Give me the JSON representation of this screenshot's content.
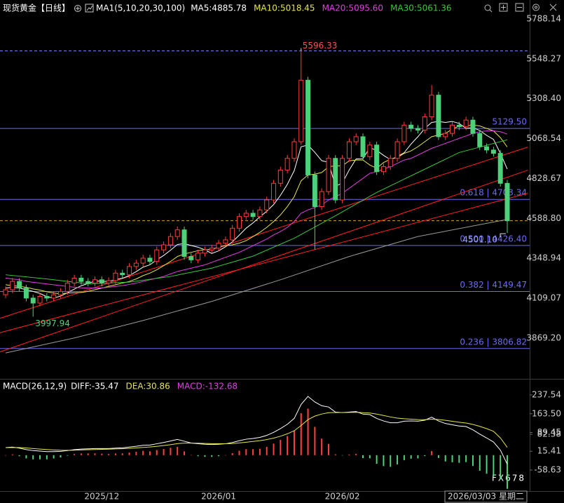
{
  "chart_data": [
    {
      "type": "candlestick",
      "title": "现货黄金【日线】",
      "indicator": "MA1(5,10,20,30,100)",
      "categories": [
        null,
        null,
        null,
        null,
        null,
        null,
        null,
        null,
        null,
        null,
        null,
        null,
        null,
        null,
        "2025/12",
        null,
        null,
        null,
        null,
        null,
        null,
        null,
        null,
        null,
        null,
        null,
        null,
        null,
        null,
        null,
        null,
        "2026/01",
        null,
        null,
        null,
        null,
        null,
        null,
        null,
        null,
        null,
        null,
        null,
        null,
        null,
        null,
        null,
        null,
        null,
        "2026/02",
        null,
        null,
        null,
        null,
        null,
        null,
        null,
        null,
        null,
        null,
        null,
        null,
        null,
        null,
        null,
        null,
        null,
        null,
        null,
        null,
        null,
        null,
        null,
        "2026/03/03 星期二"
      ],
      "open": [
        4130,
        4160,
        4210,
        4170,
        4110,
        4080,
        4120,
        4110,
        4130,
        4150,
        4200,
        4230,
        4210,
        4200,
        4220,
        4200,
        4215,
        4260,
        4250,
        4300,
        4320,
        4350,
        4330,
        4400,
        4430,
        4480,
        4520,
        4360,
        4340,
        4380,
        4400,
        4410,
        4440,
        4460,
        4530,
        4600,
        4620,
        4600,
        4640,
        4700,
        4800,
        4880,
        4950,
        5050,
        5420,
        4850,
        4660,
        4750,
        4950,
        4700,
        4950,
        5050,
        5080,
        4960,
        5030,
        4870,
        4900,
        4950,
        5050,
        5150,
        5130,
        5120,
        5200,
        5330,
        5080,
        5100,
        5150,
        5140,
        5180,
        5100,
        5020,
        5000,
        4980,
        4800
      ],
      "high": [
        4180,
        4230,
        4230,
        4190,
        4130,
        4140,
        4140,
        4150,
        4170,
        4220,
        4250,
        4250,
        4230,
        4240,
        4240,
        4235,
        4280,
        4280,
        4320,
        4340,
        4370,
        4370,
        4420,
        4450,
        4500,
        4540,
        4540,
        4380,
        4400,
        4420,
        4430,
        4460,
        4480,
        4550,
        4620,
        4640,
        4640,
        4660,
        4720,
        4820,
        4900,
        4970,
        5070,
        5596.33,
        5440,
        4870,
        4770,
        4970,
        4970,
        4970,
        5070,
        5100,
        5100,
        5050,
        5050,
        4920,
        4970,
        5070,
        5170,
        5170,
        5150,
        5220,
        5390,
        5350,
        5120,
        5170,
        5170,
        5200,
        5200,
        5120,
        5040,
        5020,
        5000,
        4820
      ],
      "low": [
        4110,
        4140,
        4150,
        4090,
        3997.94,
        4060,
        4090,
        4090,
        4110,
        4130,
        4180,
        4190,
        4180,
        4180,
        4180,
        4180,
        4195,
        4230,
        4230,
        4280,
        4300,
        4310,
        4310,
        4380,
        4410,
        4460,
        4340,
        4320,
        4320,
        4360,
        4380,
        4390,
        4420,
        4440,
        4510,
        4580,
        4580,
        4580,
        4620,
        4680,
        4780,
        4860,
        4930,
        5030,
        4830,
        4402,
        4640,
        4730,
        4680,
        4680,
        4930,
        5030,
        4940,
        4940,
        4850,
        4850,
        4880,
        4930,
        5030,
        5110,
        5100,
        5100,
        5180,
        5060,
        5060,
        5080,
        5120,
        5120,
        5080,
        5000,
        4980,
        4960,
        4780,
        4501.1
      ],
      "close": [
        4160,
        4210,
        4170,
        4110,
        4080,
        4120,
        4110,
        4130,
        4150,
        4200,
        4230,
        4210,
        4200,
        4220,
        4200,
        4215,
        4260,
        4250,
        4300,
        4320,
        4350,
        4330,
        4400,
        4430,
        4480,
        4520,
        4360,
        4340,
        4380,
        4400,
        4410,
        4440,
        4460,
        4530,
        4600,
        4620,
        4600,
        4640,
        4700,
        4800,
        4880,
        4950,
        5050,
        5420,
        4850,
        4660,
        4750,
        4950,
        4700,
        4950,
        5050,
        5080,
        4960,
        5030,
        4870,
        4900,
        4950,
        5050,
        5150,
        5130,
        5120,
        5200,
        5330,
        5080,
        5100,
        5150,
        5140,
        5180,
        5100,
        5020,
        5000,
        4980,
        4800,
        4575
      ],
      "up_color": "#ff3b3b",
      "down_color": "#4fd07a",
      "series": [
        {
          "name": "MA5:4885.78",
          "color": "#ffffff",
          "values": [
            4170,
            4175,
            4170,
            4160,
            4150,
            4138,
            4118,
            4110,
            4122,
            4142,
            4164,
            4184,
            4198,
            4212,
            4212,
            4209,
            4221,
            4229,
            4245,
            4269,
            4296,
            4310,
            4340,
            4366,
            4398,
            4432,
            4438,
            4426,
            4416,
            4400,
            4378,
            4394,
            4418,
            4448,
            4488,
            4530,
            4562,
            4598,
            4632,
            4672,
            4728,
            4794,
            4876,
            5020,
            5030,
            4986,
            4936,
            4926,
            4782,
            4802,
            4880,
            4946,
            4948,
            5014,
            4998,
            4968,
            4942,
            4960,
            4984,
            5036,
            5080,
            5130,
            5166,
            5172,
            5166,
            5172,
            5160,
            5130,
            5134,
            5118,
            5088,
            5064,
            4980,
            4885.78
          ]
        },
        {
          "name": "MA10:5018.45",
          "color": "#e6e64a",
          "values": [
            4190,
            4185,
            4180,
            4175,
            4165,
            4158,
            4148,
            4140,
            4136,
            4140,
            4142,
            4144,
            4150,
            4160,
            4170,
            4180,
            4190,
            4200,
            4210,
            4225,
            4245,
            4260,
            4280,
            4305,
            4330,
            4360,
            4375,
            4385,
            4395,
            4400,
            4405,
            4415,
            4425,
            4430,
            4440,
            4455,
            4480,
            4505,
            4535,
            4570,
            4610,
            4660,
            4720,
            4815,
            4850,
            4855,
            4865,
            4900,
            4905,
            4905,
            4935,
            4940,
            4940,
            4910,
            4890,
            4925,
            4945,
            4955,
            4980,
            4995,
            5020,
            5050,
            5080,
            5090,
            5100,
            5125,
            5145,
            5145,
            5150,
            5145,
            5130,
            5115,
            5075,
            5018.45
          ]
        },
        {
          "name": "MA20:5095.60",
          "color": "#e040e0",
          "values": [
            4230,
            4225,
            4220,
            4210,
            4205,
            4200,
            4195,
            4190,
            4185,
            4180,
            4175,
            4172,
            4170,
            4170,
            4172,
            4175,
            4180,
            4185,
            4192,
            4200,
            4210,
            4220,
            4230,
            4240,
            4255,
            4270,
            4280,
            4290,
            4300,
            4310,
            4325,
            4340,
            4355,
            4370,
            4385,
            4405,
            4425,
            4445,
            4465,
            4490,
            4510,
            4535,
            4570,
            4620,
            4640,
            4655,
            4670,
            4700,
            4720,
            4740,
            4770,
            4800,
            4830,
            4860,
            4870,
            4885,
            4900,
            4920,
            4940,
            4950,
            4970,
            4990,
            5010,
            5025,
            5040,
            5055,
            5070,
            5085,
            5100,
            5110,
            5115,
            5115,
            5110,
            5095.6
          ]
        },
        {
          "name": "MA30:5061.36",
          "color": "#3cc83c",
          "x": [
            0,
            6,
            12,
            18,
            24,
            30,
            36,
            42,
            48,
            54,
            60,
            66,
            73
          ],
          "values": [
            4250,
            4225,
            4196,
            4206,
            4240,
            4290,
            4362,
            4470,
            4605,
            4745,
            4865,
            4985,
            5061.36
          ]
        },
        {
          "color": "#9a9a9a",
          "x": [
            0,
            10,
            20,
            30,
            40,
            50,
            60,
            73
          ],
          "values": [
            3780,
            3870,
            3975,
            4090,
            4220,
            4360,
            4480,
            4583
          ]
        }
      ],
      "ylim": [
        3624.5,
        5902
      ],
      "yticks": [
        5788.14,
        5548.27,
        {
          "value": 5308.4,
          "label": "5308.40"
        },
        5068.54,
        4828.67,
        {
          "value": 4588.8,
          "label": "4588.80"
        },
        4348.94,
        4109.07,
        {
          "value": 3869.2,
          "label": "3869.20"
        }
      ],
      "level_color": "#6b6bef",
      "levels": [
        {
          "value": 5129.5,
          "label": "5129.50"
        },
        {
          "value": 4703.34,
          "label": "0.618 | 4703.34"
        },
        {
          "value": 4426.4,
          "label": "0.500 | 4426.40"
        },
        {
          "value": 4149.47,
          "label": "0.382 | 4149.47"
        },
        {
          "value": 3806.82,
          "label": "0.236 | 3806.82"
        }
      ],
      "dashed_levels": [
        {
          "value": 5596.33,
          "color": "#7b7bef"
        },
        {
          "value": 4575,
          "color": "#e09a30"
        }
      ],
      "trend_lines": [
        {
          "color": "#ff2020",
          "x": [
            -1,
            76
          ],
          "values": [
            3986,
            5018
          ]
        },
        {
          "color": "#ff2020",
          "x": [
            -1,
            76
          ],
          "values": [
            3900,
            4740
          ]
        },
        {
          "color": "#ff2020",
          "x": [
            -1,
            76
          ],
          "values": [
            3784,
            4879
          ]
        }
      ],
      "annotations": [
        {
          "value": 5596.33,
          "color": "#ff5050"
        },
        {
          "value": 3997.94,
          "color": "#4fd07a"
        },
        {
          "value": 4501.1,
          "label": "4501.10",
          "color": "#9a9aff"
        }
      ]
    },
    {
      "type": "macd",
      "title": "MACD(26,12,9)",
      "series": [
        {
          "name": "DIFF:-35.47",
          "color": "#ffffff",
          "values": [
            30,
            32,
            28,
            22,
            18,
            16,
            14,
            14,
            15,
            18,
            22,
            24,
            25,
            26,
            26,
            26,
            28,
            29,
            32,
            35,
            39,
            40,
            45,
            50,
            56,
            62,
            55,
            48,
            45,
            43,
            42,
            43,
            45,
            50,
            57,
            63,
            66,
            70,
            78,
            90,
            105,
            122,
            145,
            200,
            232,
            210,
            195,
            190,
            170,
            168,
            170,
            172,
            162,
            160,
            145,
            135,
            128,
            128,
            134,
            135,
            134,
            138,
            150,
            135,
            125,
            120,
            115,
            113,
            100,
            83,
            68,
            52,
            20,
            -35.47
          ]
        },
        {
          "name": "DEA:30.86",
          "color": "#e6e64a",
          "values": [
            30,
            30.4,
            30,
            28.4,
            26.3,
            24.2,
            22.2,
            20.5,
            19.4,
            19.1,
            19.7,
            20.6,
            21.5,
            22.4,
            23.1,
            23.7,
            24.6,
            25.5,
            26.8,
            28.4,
            30.5,
            32.4,
            34.9,
            37.9,
            41.5,
            45.6,
            47.5,
            47.6,
            47.1,
            46.3,
            45.4,
            45,
            45,
            46,
            48.2,
            51.2,
            54.2,
            57.3,
            61.5,
            67.2,
            74.8,
            84.2,
            96.4,
            117.1,
            140.1,
            154.1,
            162.3,
            167.8,
            168.3,
            168.2,
            168.6,
            169.3,
            167.8,
            166.2,
            162,
            156.6,
            150.9,
            146.3,
            143.8,
            142,
            140.4,
            139.9,
            141.9,
            140.5,
            137.4,
            133.9,
            130.1,
            126.7,
            121.4,
            113.7,
            104.6,
            94.1,
            68,
            30.86
          ]
        },
        {
          "name": "MACD:-132.68",
          "color": "#e040e0",
          "kind": "histogram",
          "values": [
            0,
            3.2,
            -4,
            -12.8,
            -16.6,
            -16.4,
            -16.4,
            -13,
            -8.8,
            -2.2,
            4.6,
            6.8,
            7,
            7.2,
            5.8,
            4.6,
            6.8,
            7,
            10.4,
            13.2,
            17,
            15.2,
            20.2,
            24.2,
            29,
            32.8,
            15,
            0.8,
            -4.2,
            -6.6,
            -6.8,
            -4,
            0,
            8,
            17.6,
            23.6,
            23.6,
            25.4,
            33,
            45.6,
            60.4,
            75.6,
            97.2,
            165.8,
            183.8,
            111.8,
            65.4,
            44.4,
            3.4,
            -0.4,
            2.8,
            5.4,
            -11.6,
            -12.4,
            -34,
            -43.2,
            -45.8,
            -36.6,
            -19.6,
            -14,
            -12.8,
            -3.8,
            16.2,
            -11,
            -24.8,
            -27.8,
            -30.2,
            -27.4,
            -42.8,
            -61.4,
            -73.2,
            -84.2,
            -96,
            -132.68
          ]
        }
      ],
      "up_color": "#ff4040",
      "down_color": "#4fd07a",
      "ylim": [
        -141.7,
        279.1
      ],
      "yticks": [
        237.54,
        {
          "value": 163.5,
          "label": "163.50"
        },
        89.45,
        82.38,
        15.41,
        -58.63
      ],
      "watermark": "FX678"
    }
  ]
}
